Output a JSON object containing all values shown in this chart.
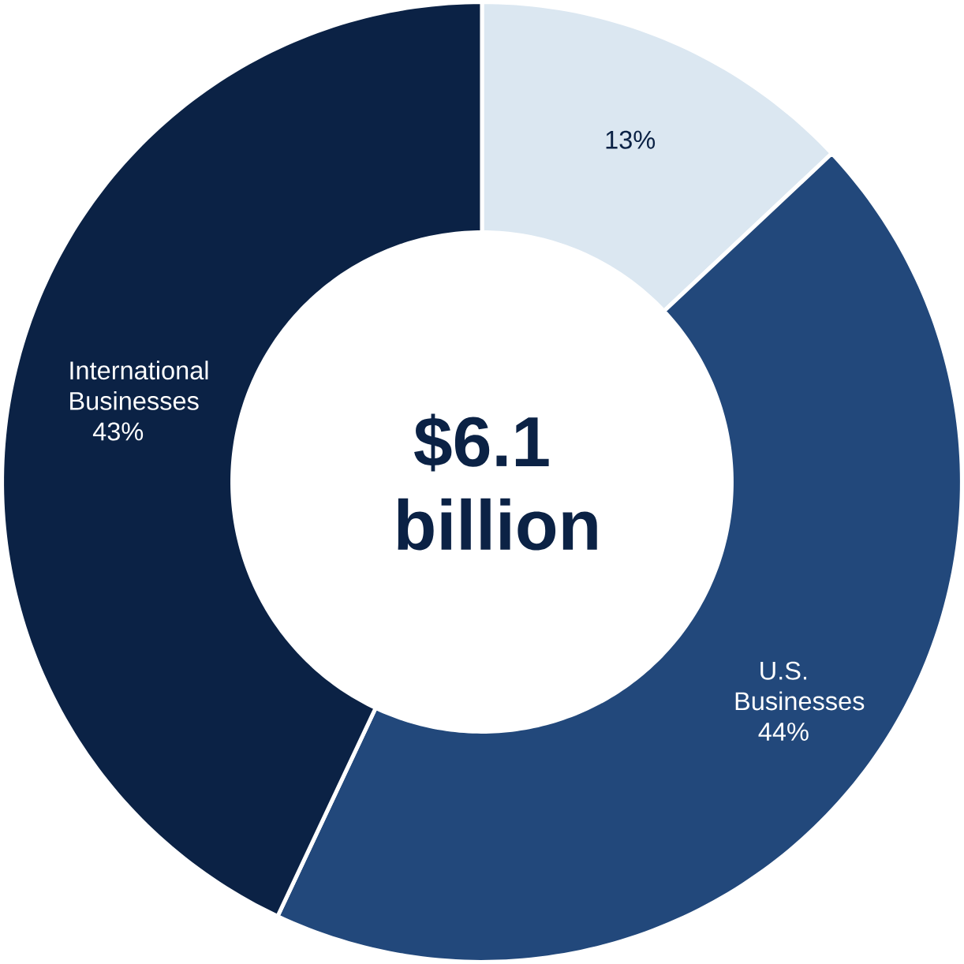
{
  "chart_data": {
    "type": "donut",
    "title": "$6.1 billion",
    "categories": [
      null,
      "U.S. Businesses",
      "International Businesses"
    ],
    "values": [
      13,
      44,
      43
    ],
    "value_labels": [
      "13%",
      "44%",
      "43%"
    ],
    "colors": [
      "#dbe7f1",
      "#22487b",
      "#0b2245"
    ]
  }
}
